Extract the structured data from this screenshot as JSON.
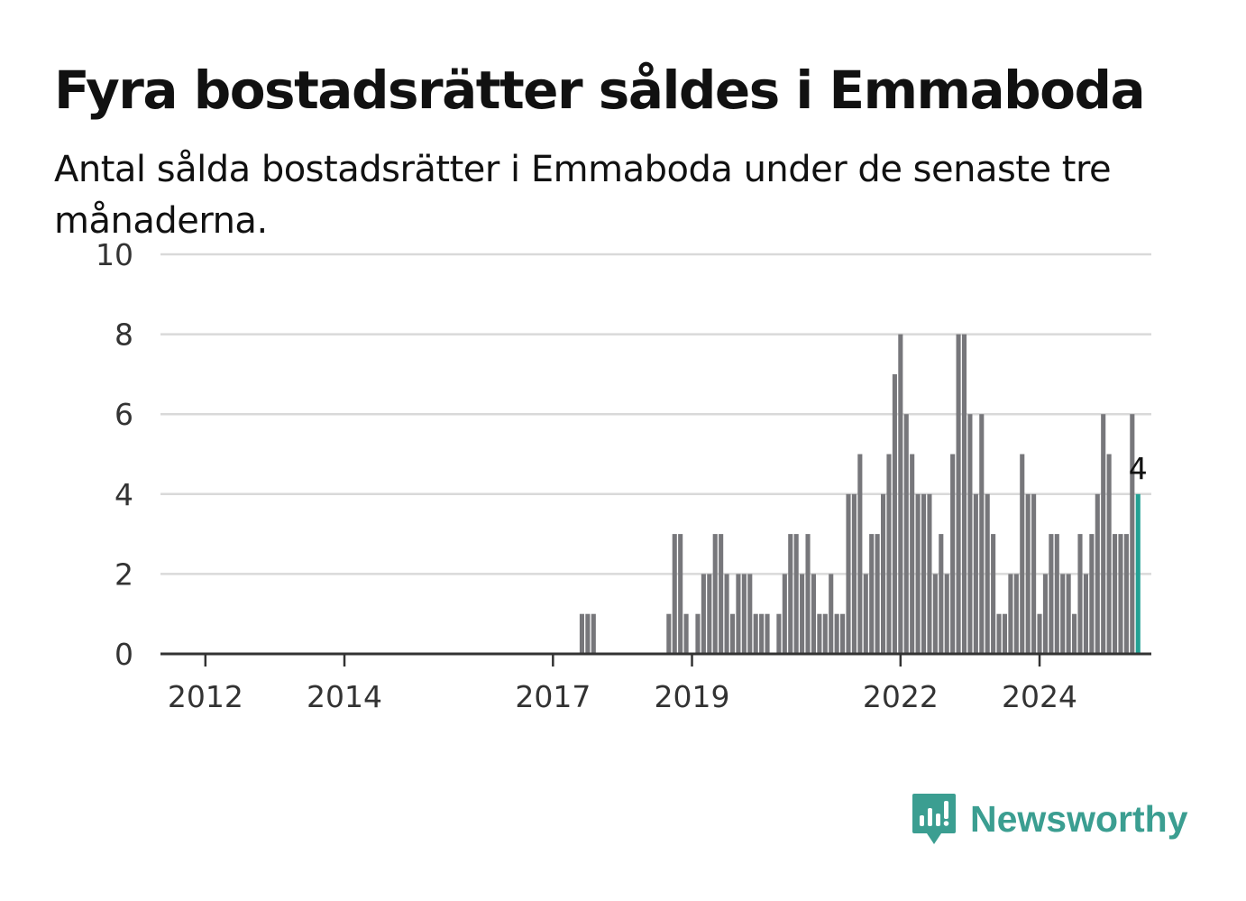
{
  "title": "Fyra bostadsrätter såldes i Emmaboda",
  "subtitle": "Antal sålda bostadsrätter i Emmaboda under de senaste tre månaderna.",
  "logo": {
    "text": "Newsworthy",
    "icon": "newsworthy-logo-icon"
  },
  "colors": {
    "bar": "#77777b",
    "highlight": "#23a194",
    "grid": "#d9d9d9",
    "axis": "#333333",
    "brand": "#3b9e91"
  },
  "chart_data": {
    "type": "bar",
    "start": "2011-10",
    "ylim": [
      0,
      10
    ],
    "y_ticks": [
      0,
      2,
      4,
      6,
      8,
      10
    ],
    "x_ticks": [
      "2012",
      "2014",
      "2017",
      "2019",
      "2022",
      "2024"
    ],
    "highlight_label": "4",
    "values": [
      0,
      0,
      0,
      0,
      0,
      0,
      0,
      0,
      0,
      0,
      0,
      0,
      0,
      0,
      0,
      0,
      0,
      0,
      0,
      0,
      0,
      0,
      0,
      0,
      0,
      0,
      0,
      0,
      0,
      0,
      0,
      0,
      0,
      0,
      0,
      0,
      0,
      0,
      0,
      0,
      0,
      0,
      0,
      0,
      0,
      0,
      0,
      0,
      0,
      0,
      0,
      0,
      0,
      0,
      0,
      0,
      0,
      0,
      0,
      0,
      0,
      0,
      0,
      0,
      0,
      0,
      0,
      0,
      1,
      1,
      1,
      0,
      0,
      0,
      0,
      0,
      0,
      0,
      0,
      0,
      0,
      0,
      0,
      1,
      3,
      3,
      1,
      0,
      1,
      2,
      2,
      3,
      3,
      2,
      1,
      2,
      2,
      2,
      1,
      1,
      1,
      0,
      1,
      2,
      3,
      3,
      2,
      3,
      2,
      1,
      1,
      2,
      1,
      1,
      4,
      4,
      5,
      2,
      3,
      3,
      4,
      5,
      7,
      8,
      6,
      5,
      4,
      4,
      4,
      2,
      3,
      2,
      5,
      8,
      8,
      6,
      4,
      6,
      4,
      3,
      1,
      1,
      2,
      2,
      5,
      4,
      4,
      1,
      2,
      3,
      3,
      2,
      2,
      1,
      3,
      2,
      3,
      4,
      6,
      5,
      3,
      3,
      3,
      6,
      4
    ]
  }
}
